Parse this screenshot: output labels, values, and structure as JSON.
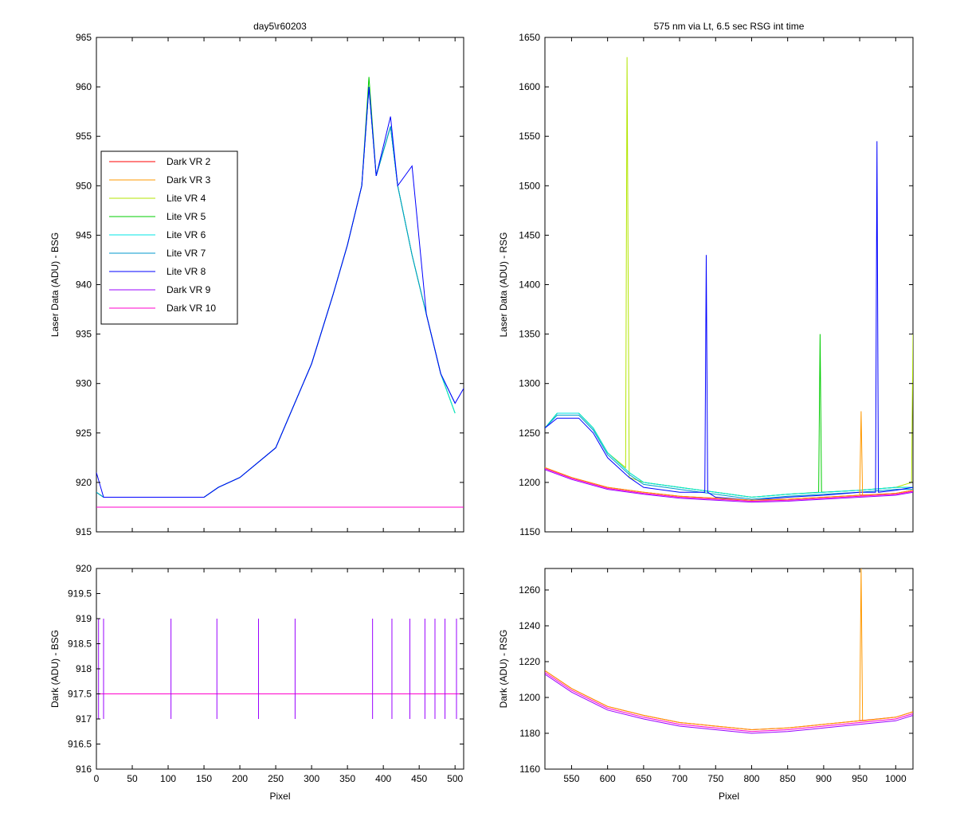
{
  "window": {
    "background": "#ffffff"
  },
  "chart_data": [
    {
      "panel": "top-left",
      "type": "line",
      "title": "day5\\r60203",
      "xlabel": "",
      "ylabel": "Laser Data (ADU) - BSG",
      "xlim": [
        0,
        512
      ],
      "ylim": [
        915,
        965
      ],
      "x_ticks": [
        0,
        50,
        100,
        150,
        200,
        250,
        300,
        350,
        400,
        450,
        500
      ],
      "y_ticks": [
        915,
        920,
        925,
        930,
        935,
        940,
        945,
        950,
        955,
        960,
        965
      ],
      "x_tick_labels_visible": false,
      "grid": false,
      "legend": {
        "placement": "upper-left",
        "entries": [
          "Dark VR 2",
          "Dark VR 3",
          "Lite VR 4",
          "Lite VR 5",
          "Lite VR 6",
          "Lite VR 7",
          "Lite VR 8",
          "Dark VR 9",
          "Dark VR 10"
        ]
      },
      "series": [
        {
          "name": "Dark VR 2",
          "color": "#ff0000",
          "x": [
            0,
            512
          ],
          "y": [
            917.5,
            917.5
          ]
        },
        {
          "name": "Dark VR 3",
          "color": "#ff9900",
          "x": [
            0,
            512
          ],
          "y": [
            917.5,
            917.5
          ]
        },
        {
          "name": "Lite VR 4",
          "color": "#b3e600",
          "x": [
            0,
            10,
            50,
            100,
            150,
            170,
            200,
            250,
            300,
            330,
            350,
            370,
            380,
            390,
            410,
            420,
            440,
            460,
            480,
            500
          ],
          "y": [
            919,
            918.5,
            918.5,
            918.5,
            918.5,
            919.5,
            920.5,
            923.5,
            932,
            939,
            944,
            950,
            960,
            951,
            956,
            950,
            943,
            937,
            931,
            927
          ]
        },
        {
          "name": "Lite VR 5",
          "color": "#00cc00",
          "x": [
            0,
            10,
            50,
            100,
            150,
            170,
            200,
            250,
            300,
            330,
            350,
            370,
            380,
            390,
            410,
            420,
            440,
            460,
            480,
            500
          ],
          "y": [
            919,
            918.5,
            918.5,
            918.5,
            918.5,
            919.5,
            920.5,
            923.5,
            932,
            939,
            944,
            950,
            961,
            951,
            956,
            950,
            943,
            937,
            931,
            927
          ]
        },
        {
          "name": "Lite VR 6",
          "color": "#00e6e6",
          "x": [
            0,
            10,
            50,
            100,
            150,
            170,
            200,
            250,
            300,
            330,
            350,
            370,
            380,
            390,
            410,
            420,
            440,
            460,
            480,
            500
          ],
          "y": [
            919,
            918.5,
            918.5,
            918.5,
            918.5,
            919.5,
            920.5,
            923.5,
            932,
            939,
            944,
            950,
            960,
            951,
            956,
            950,
            943,
            937,
            931,
            927
          ]
        },
        {
          "name": "Lite VR 7",
          "color": "#0099cc",
          "x": [
            0,
            10,
            50,
            100,
            150,
            170,
            200,
            250,
            300,
            330,
            350,
            370,
            380,
            390,
            410,
            420,
            440,
            460,
            480,
            500
          ],
          "y": [
            919,
            918.5,
            918.5,
            918.5,
            918.5,
            919.5,
            920.5,
            923.5,
            932,
            939,
            944,
            950,
            960,
            951,
            956,
            950,
            943,
            937,
            931,
            928
          ]
        },
        {
          "name": "Lite VR 8",
          "color": "#0000ff",
          "x": [
            0,
            10,
            50,
            100,
            150,
            170,
            200,
            250,
            300,
            330,
            350,
            370,
            380,
            390,
            410,
            420,
            440,
            460,
            480,
            500,
            512
          ],
          "y": [
            921,
            918.5,
            918.5,
            918.5,
            918.5,
            919.5,
            920.5,
            923.5,
            932,
            939,
            944,
            950,
            960,
            951,
            957,
            950,
            952,
            937,
            931,
            928,
            929.5
          ]
        },
        {
          "name": "Dark VR 9",
          "color": "#9900ff",
          "x": [
            0,
            512
          ],
          "y": [
            917.5,
            917.5
          ]
        },
        {
          "name": "Dark VR 10",
          "color": "#ff00cc",
          "x": [
            0,
            512
          ],
          "y": [
            917.5,
            917.5
          ]
        }
      ]
    },
    {
      "panel": "top-right",
      "type": "line",
      "title": "575 nm via Lt, 6.5 sec RSG int time",
      "xlabel": "",
      "ylabel": "Laser Data (ADU) - RSG",
      "xlim": [
        513,
        1024
      ],
      "ylim": [
        1150,
        1650
      ],
      "x_ticks": [
        550,
        600,
        650,
        700,
        750,
        800,
        850,
        900,
        950,
        1000
      ],
      "y_ticks": [
        1150,
        1200,
        1250,
        1300,
        1350,
        1400,
        1450,
        1500,
        1550,
        1600,
        1650
      ],
      "x_tick_labels_visible": false,
      "grid": false,
      "series": [
        {
          "name": "Lite VR 4",
          "color": "#b3e600",
          "x": [
            513,
            530,
            545,
            560,
            580,
            600,
            625,
            627,
            630,
            650,
            700,
            750,
            800,
            850,
            900,
            950,
            1000,
            1022,
            1024
          ],
          "y": [
            1255,
            1270,
            1270,
            1270,
            1255,
            1230,
            1215,
            1630,
            1205,
            1200,
            1195,
            1190,
            1185,
            1188,
            1190,
            1192,
            1195,
            1200,
            1350
          ]
        },
        {
          "name": "Lite VR 5",
          "color": "#00cc00",
          "x": [
            513,
            530,
            545,
            560,
            580,
            600,
            630,
            650,
            700,
            750,
            800,
            850,
            893,
            895,
            897,
            950,
            1000,
            1024
          ],
          "y": [
            1255,
            1270,
            1270,
            1270,
            1255,
            1230,
            1210,
            1200,
            1195,
            1190,
            1185,
            1188,
            1190,
            1350,
            1190,
            1192,
            1195,
            1195
          ]
        },
        {
          "name": "Lite VR 6",
          "color": "#00e6e6",
          "x": [
            513,
            530,
            545,
            560,
            580,
            600,
            630,
            650,
            700,
            750,
            800,
            850,
            900,
            950,
            1000,
            1024
          ],
          "y": [
            1255,
            1270,
            1270,
            1270,
            1255,
            1230,
            1210,
            1200,
            1195,
            1190,
            1185,
            1188,
            1190,
            1192,
            1195,
            1195
          ]
        },
        {
          "name": "Lite VR 7",
          "color": "#0099cc",
          "x": [
            513,
            530,
            545,
            560,
            580,
            600,
            630,
            650,
            700,
            750,
            800,
            850,
            900,
            950,
            1000,
            1024
          ],
          "y": [
            1255,
            1268,
            1268,
            1268,
            1253,
            1228,
            1208,
            1198,
            1193,
            1188,
            1183,
            1186,
            1188,
            1190,
            1193,
            1193
          ]
        },
        {
          "name": "Lite VR 8",
          "color": "#0000ff",
          "x": [
            513,
            530,
            545,
            560,
            580,
            600,
            630,
            650,
            700,
            735,
            737,
            739,
            750,
            800,
            850,
            900,
            950,
            972,
            974,
            976,
            1000,
            1024
          ],
          "y": [
            1255,
            1265,
            1265,
            1265,
            1250,
            1225,
            1205,
            1195,
            1190,
            1190,
            1430,
            1190,
            1185,
            1182,
            1185,
            1187,
            1190,
            1190,
            1545,
            1190,
            1192,
            1195
          ]
        },
        {
          "name": "Dark VR 2",
          "color": "#ff0000",
          "x": [
            513,
            550,
            600,
            650,
            700,
            750,
            800,
            850,
            900,
            950,
            1000,
            1024
          ],
          "y": [
            1215,
            1205,
            1195,
            1190,
            1186,
            1184,
            1182,
            1183,
            1185,
            1187,
            1189,
            1192
          ]
        },
        {
          "name": "Dark VR 3",
          "color": "#ff9900",
          "x": [
            513,
            550,
            600,
            650,
            700,
            750,
            800,
            850,
            900,
            950,
            952,
            954,
            1000,
            1024
          ],
          "y": [
            1215,
            1205,
            1195,
            1190,
            1186,
            1184,
            1182,
            1183,
            1185,
            1187,
            1272,
            1187,
            1189,
            1192
          ]
        },
        {
          "name": "Dark VR 9",
          "color": "#9900ff",
          "x": [
            513,
            550,
            600,
            650,
            700,
            750,
            800,
            850,
            900,
            950,
            1000,
            1024
          ],
          "y": [
            1213,
            1203,
            1193,
            1188,
            1184,
            1182,
            1180,
            1181,
            1183,
            1185,
            1187,
            1190
          ]
        },
        {
          "name": "Dark VR 10",
          "color": "#ff00cc",
          "x": [
            513,
            550,
            600,
            650,
            700,
            750,
            800,
            850,
            900,
            950,
            1000,
            1024
          ],
          "y": [
            1214,
            1204,
            1194,
            1189,
            1185,
            1183,
            1181,
            1182,
            1184,
            1186,
            1188,
            1191
          ]
        }
      ]
    },
    {
      "panel": "bottom-left",
      "type": "line",
      "xlabel": "Pixel",
      "ylabel": "Dark (ADU) - BSG",
      "xlim": [
        0,
        512
      ],
      "ylim": [
        916,
        920
      ],
      "x_ticks": [
        0,
        50,
        100,
        150,
        200,
        250,
        300,
        350,
        400,
        450,
        500
      ],
      "y_ticks": [
        916,
        916.5,
        917,
        917.5,
        918,
        918.5,
        919,
        919.5,
        920
      ],
      "x_tick_labels_visible": true,
      "grid": false,
      "series": [
        {
          "name": "Dark VR 2",
          "color": "#ff0000",
          "x": [
            0,
            512
          ],
          "y": [
            917.5,
            917.5
          ]
        },
        {
          "name": "Dark VR 3",
          "color": "#ff9900",
          "x": [
            0,
            512
          ],
          "y": [
            917.5,
            917.5
          ]
        },
        {
          "name": "Dark VR 9",
          "color": "#9900ff",
          "x": [
            0,
            512
          ],
          "y": [
            917.5,
            917.5
          ]
        },
        {
          "name": "Dark VR 10",
          "color": "#ff00cc",
          "x": [
            0,
            512
          ],
          "y": [
            917.5,
            917.5
          ]
        }
      ],
      "spikes_to_919": [
        3,
        10,
        104,
        168,
        226,
        277,
        385,
        412,
        437,
        458,
        472,
        486,
        502
      ]
    },
    {
      "panel": "bottom-right",
      "type": "line",
      "xlabel": "Pixel",
      "ylabel": "Dark (ADU) - RSG",
      "xlim": [
        513,
        1024
      ],
      "ylim": [
        1160,
        1272
      ],
      "x_ticks": [
        550,
        600,
        650,
        700,
        750,
        800,
        850,
        900,
        950,
        1000
      ],
      "y_ticks": [
        1160,
        1180,
        1200,
        1220,
        1240,
        1260
      ],
      "x_tick_labels_visible": true,
      "grid": false,
      "series": [
        {
          "name": "Dark VR 2",
          "color": "#ff0000",
          "x": [
            513,
            550,
            600,
            650,
            700,
            750,
            800,
            850,
            900,
            950,
            1000,
            1024
          ],
          "y": [
            1215,
            1205,
            1195,
            1190,
            1186,
            1184,
            1182,
            1183,
            1185,
            1187,
            1189,
            1192
          ]
        },
        {
          "name": "Dark VR 3",
          "color": "#ff9900",
          "x": [
            513,
            550,
            600,
            650,
            700,
            750,
            800,
            850,
            900,
            950,
            952,
            954,
            1000,
            1024
          ],
          "y": [
            1215,
            1205,
            1195,
            1190,
            1186,
            1184,
            1182,
            1183,
            1185,
            1187,
            1272,
            1187,
            1189,
            1192
          ]
        },
        {
          "name": "Dark VR 9",
          "color": "#9900ff",
          "x": [
            513,
            550,
            600,
            650,
            700,
            750,
            800,
            850,
            900,
            950,
            1000,
            1024
          ],
          "y": [
            1213,
            1203,
            1193,
            1188,
            1184,
            1182,
            1180,
            1181,
            1183,
            1185,
            1187,
            1190
          ]
        },
        {
          "name": "Dark VR 10",
          "color": "#ff00cc",
          "x": [
            513,
            550,
            600,
            650,
            700,
            750,
            800,
            850,
            900,
            950,
            1000,
            1024
          ],
          "y": [
            1214,
            1204,
            1194,
            1189,
            1185,
            1183,
            1181,
            1182,
            1184,
            1186,
            1188,
            1191
          ]
        }
      ]
    }
  ]
}
